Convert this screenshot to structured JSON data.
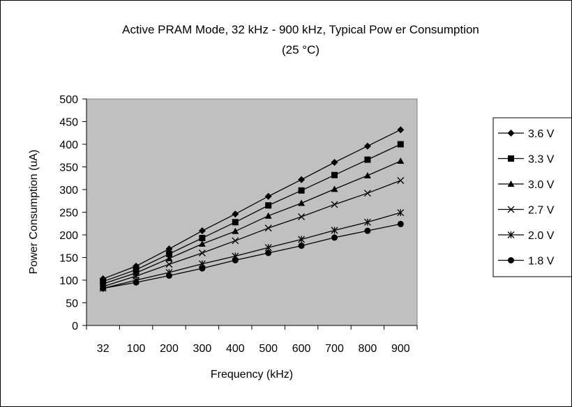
{
  "chart_data": {
    "type": "line",
    "title": "Active PRAM Mode, 32 kHz - 900 kHz, Typical Pow er Consumption",
    "subtitle": "(25 °C)",
    "xlabel": "Frequency (kHz)",
    "ylabel": "Power Consumption (uA)",
    "categories": [
      "32",
      "100",
      "200",
      "300",
      "400",
      "500",
      "600",
      "700",
      "800",
      "900"
    ],
    "ylim": [
      0,
      500
    ],
    "ystep": 50,
    "yticks": [
      "0",
      "50",
      "100",
      "150",
      "200",
      "250",
      "300",
      "350",
      "400",
      "450",
      "500"
    ],
    "grid": false,
    "legend_position": "right",
    "plot_background": "#c0c0c0",
    "line_color": "#000000",
    "series": [
      {
        "name": "3.6 V",
        "marker": "diamond",
        "values": [
          103,
          131,
          169,
          209,
          246,
          285,
          322,
          360,
          396,
          432
        ]
      },
      {
        "name": "3.3 V",
        "marker": "square",
        "values": [
          97,
          123,
          158,
          193,
          228,
          265,
          298,
          332,
          366,
          400
        ]
      },
      {
        "name": "3.0 V",
        "marker": "triangle",
        "values": [
          92,
          116,
          148,
          180,
          208,
          242,
          270,
          301,
          331,
          363
        ]
      },
      {
        "name": "2.7 V",
        "marker": "x",
        "values": [
          86,
          109,
          135,
          160,
          187,
          215,
          240,
          267,
          292,
          320
        ]
      },
      {
        "name": "2.0 V",
        "marker": "star",
        "values": [
          82,
          100,
          117,
          136,
          153,
          172,
          190,
          210,
          228,
          249
        ]
      },
      {
        "name": "1.8 V",
        "marker": "circle",
        "values": [
          82,
          95,
          110,
          126,
          144,
          160,
          176,
          194,
          209,
          224
        ]
      }
    ]
  }
}
